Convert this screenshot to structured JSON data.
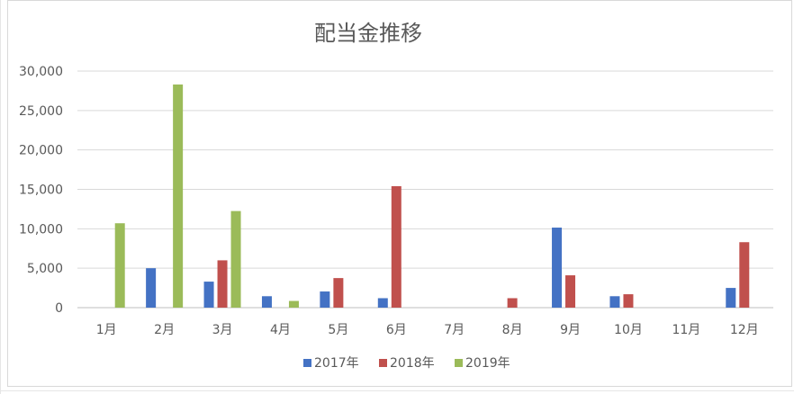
{
  "chart_data": {
    "type": "bar",
    "title": "配当金推移",
    "categories": [
      "1月",
      "2月",
      "3月",
      "4月",
      "5月",
      "6月",
      "7月",
      "8月",
      "9月",
      "10月",
      "11月",
      "12月"
    ],
    "series": [
      {
        "name": "2017年",
        "color": "#4472C4",
        "values": [
          0,
          5000,
          3300,
          1450,
          2050,
          1200,
          0,
          0,
          10150,
          1450,
          0,
          2500
        ]
      },
      {
        "name": "2018年",
        "color": "#C0504D",
        "values": [
          0,
          0,
          6000,
          0,
          3750,
          15400,
          0,
          1200,
          4100,
          1700,
          0,
          8300
        ]
      },
      {
        "name": "2019年",
        "color": "#9BBB59",
        "values": [
          10700,
          28300,
          12250,
          850,
          0,
          0,
          0,
          0,
          0,
          0,
          0,
          0
        ]
      }
    ],
    "ylim": [
      0,
      30000
    ],
    "yticks": [
      0,
      5000,
      10000,
      15000,
      20000,
      25000,
      30000
    ],
    "ytick_labels": [
      "0",
      "5,000",
      "10,000",
      "15,000",
      "20,000",
      "25,000",
      "30,000"
    ],
    "xlabel": "",
    "ylabel": "",
    "grid": true,
    "legend_position": "bottom"
  }
}
